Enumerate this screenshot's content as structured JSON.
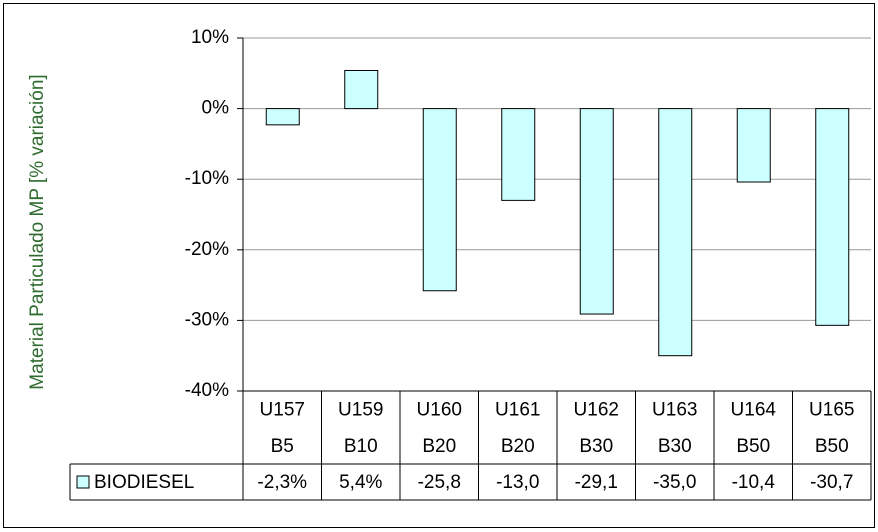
{
  "chart_data": {
    "type": "bar",
    "y_label": "Material Particulado MP [% variación]",
    "categories": [
      [
        "U157",
        "B5"
      ],
      [
        "U159",
        "B10"
      ],
      [
        "U160",
        "B20"
      ],
      [
        "U161",
        "B20"
      ],
      [
        "U162",
        "B30"
      ],
      [
        "U163",
        "B30"
      ],
      [
        "U164",
        "B50"
      ],
      [
        "U165",
        "B50"
      ]
    ],
    "series": [
      {
        "name": "BIODIESEL",
        "color": "#ccffff",
        "values": [
          -2.3,
          5.4,
          -25.8,
          -13.0,
          -29.1,
          -35.0,
          -10.4,
          -30.7
        ],
        "value_labels": [
          "-2,3%",
          "5,4%",
          "-25,8",
          "-13,0",
          "-29,1",
          "-35,0",
          "-10,4",
          "-30,7"
        ]
      }
    ],
    "ylim": [
      -40,
      10
    ],
    "yticks": [
      {
        "value": -40,
        "label": "-40%"
      },
      {
        "value": -30,
        "label": "-30%"
      },
      {
        "value": -20,
        "label": "-20%"
      },
      {
        "value": -10,
        "label": "-10%"
      },
      {
        "value": 0,
        "label": "0%"
      },
      {
        "value": 10,
        "label": "10%"
      }
    ],
    "grid": true
  }
}
